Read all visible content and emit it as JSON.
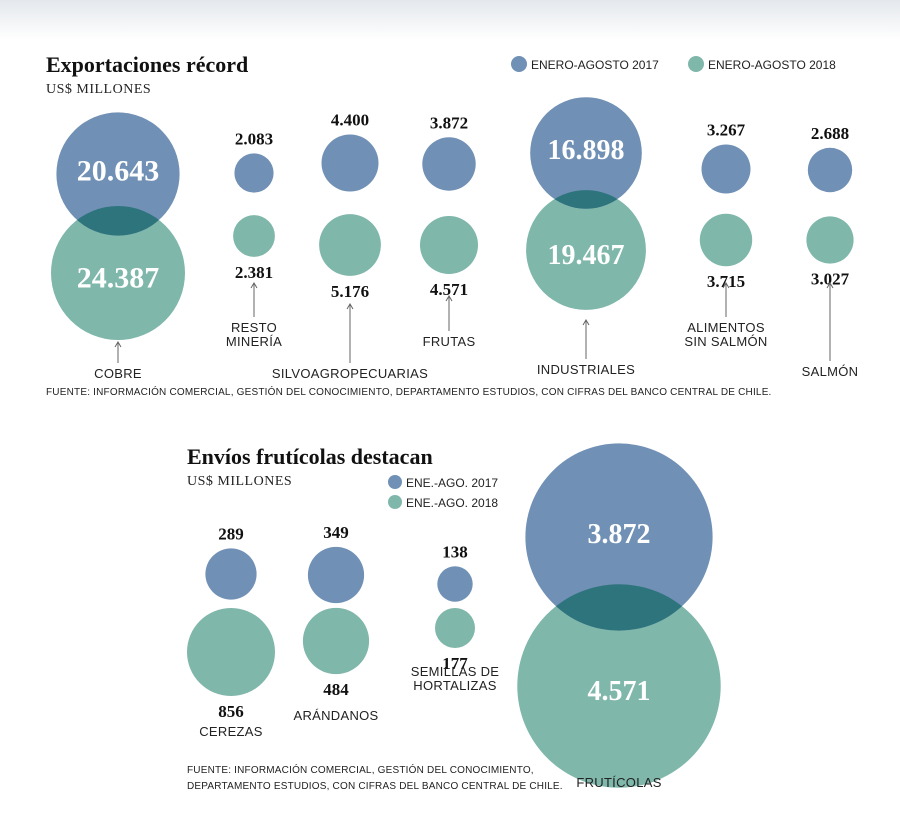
{
  "colors": {
    "year2017": "#7090b5",
    "year2018": "#7fb7aa",
    "overlap": "#2e747c"
  },
  "chart_data": [
    {
      "type": "bubble",
      "title": "Exportaciones récord",
      "unit": "US$ MILLONES",
      "legend": [
        "ENERO-AGOSTO 2017",
        "ENERO-AGOSTO 2018"
      ],
      "legend_position": "top-right",
      "source": "FUENTE: INFORMACIÓN COMERCIAL, GESTIÓN DEL CONOCIMIENTO, DEPARTAMENTO ESTUDIOS, CON CIFRAS DEL BANCO CENTRAL DE CHILE.",
      "categories": [
        {
          "label": [
            "COBRE"
          ],
          "v2017": "20.643",
          "v2018": "24.387"
        },
        {
          "label": [
            "RESTO",
            "MINERÍA"
          ],
          "v2017": "2.083",
          "v2018": "2.381"
        },
        {
          "label": [
            "SILVOAGROPECUARIAS"
          ],
          "v2017": "4.400",
          "v2018": "5.176"
        },
        {
          "label": [
            "FRUTAS"
          ],
          "v2017": "3.872",
          "v2018": "4.571"
        },
        {
          "label": [
            "INDUSTRIALES"
          ],
          "v2017": "16.898",
          "v2018": "19.467"
        },
        {
          "label": [
            "ALIMENTOS",
            "SIN SALMÓN"
          ],
          "v2017": "3.267",
          "v2018": "3.715"
        },
        {
          "label": [
            "SALMÓN"
          ],
          "v2017": "2.688",
          "v2018": "3.027"
        }
      ]
    },
    {
      "type": "bubble",
      "title": "Envíos frutícolas destacan",
      "unit": "US$ MILLONES",
      "legend": [
        "ENE.-AGO. 2017",
        "ENE.-AGO. 2018"
      ],
      "legend_position": "top-right",
      "source": [
        "FUENTE: INFORMACIÓN COMERCIAL, GESTIÓN DEL CONOCIMIENTO,",
        "DEPARTAMENTO ESTUDIOS, CON CIFRAS DEL BANCO CENTRAL DE CHILE."
      ],
      "categories": [
        {
          "label": [
            "CEREZAS"
          ],
          "v2017": "289",
          "v2018": "856"
        },
        {
          "label": [
            "ARÁNDANOS"
          ],
          "v2017": "349",
          "v2018": "484"
        },
        {
          "label": [
            "SEMILLAS DE",
            "HORTALIZAS"
          ],
          "v2017": "138",
          "v2018": "177"
        },
        {
          "label": [
            "FRUTÍCOLAS"
          ],
          "v2017": "3.872",
          "v2018": "4.571"
        }
      ]
    }
  ]
}
